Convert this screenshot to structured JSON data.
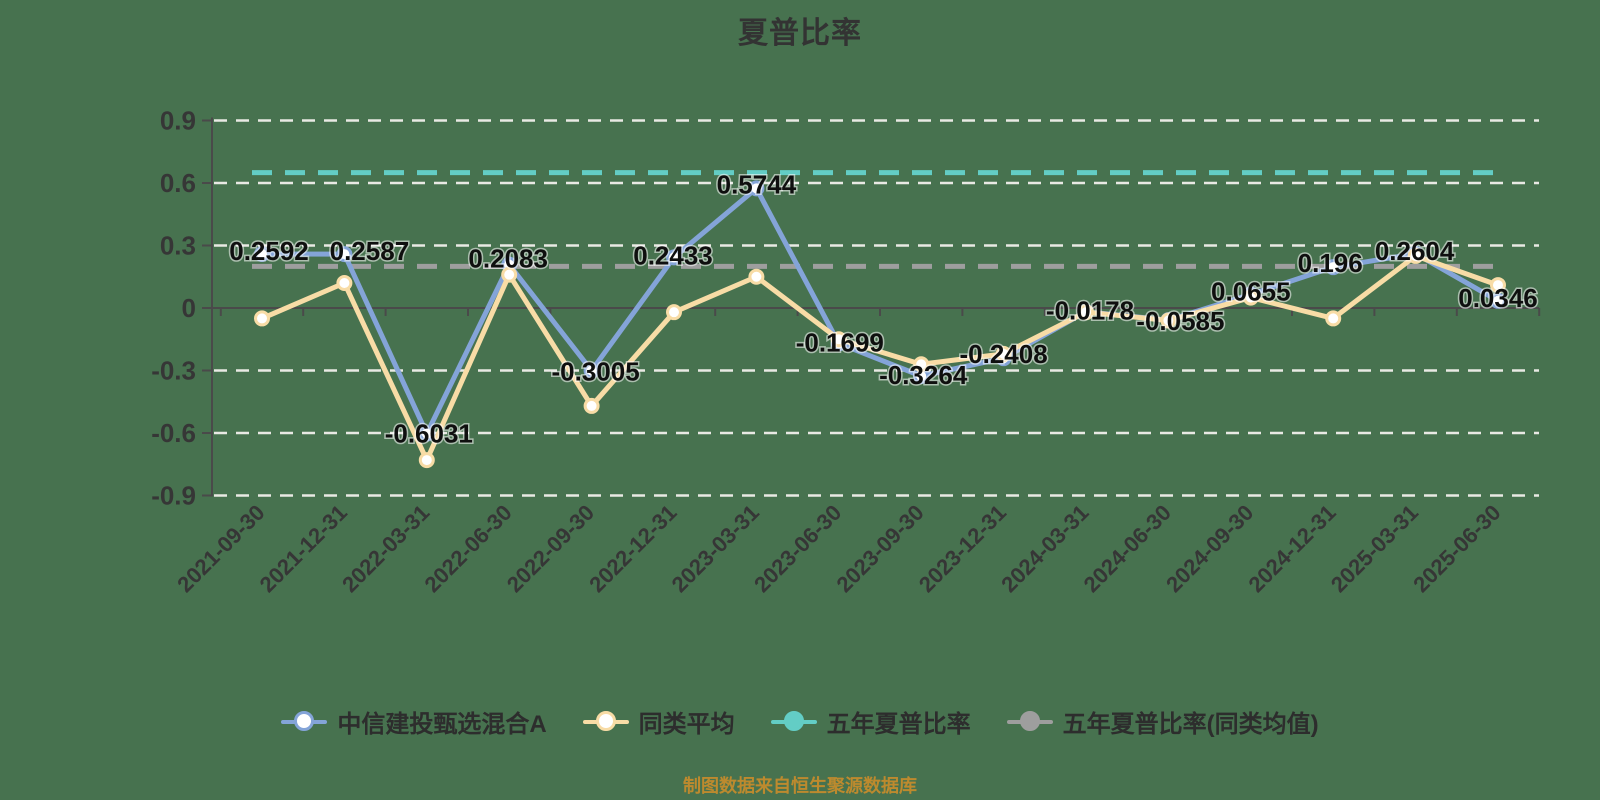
{
  "title": "夏普比率",
  "caption": {
    "text": "制图数据来自恒生聚源数据库"
  },
  "colors": {
    "background": "#47724f",
    "grid_line": "#e9e9e4",
    "axis_line": "#4a4a4a",
    "tick_text": "#363636",
    "data_label_text": "#0f0f0f",
    "title_text": "#333333",
    "legend_text": "#2d2d2d",
    "caption_text": "#bd8a2e",
    "marker_fill": "#ffffff"
  },
  "chart_data": {
    "type": "line",
    "title": "夏普比率",
    "categories": [
      "2021-09-30",
      "2021-12-31",
      "2022-03-31",
      "2022-06-30",
      "2022-09-30",
      "2022-12-31",
      "2023-03-31",
      "2023-06-30",
      "2023-09-30",
      "2023-12-31",
      "2024-03-31",
      "2024-06-30",
      "2024-09-30",
      "2024-12-31",
      "2025-03-31",
      "2025-06-30"
    ],
    "series": [
      {
        "name": "中信建投甄选混合A",
        "type": "line",
        "color": "#84a4d8",
        "marker": "white-circle",
        "values": [
          0.2592,
          0.2587,
          -0.6031,
          0.2083,
          -0.3005,
          0.2433,
          0.5744,
          -0.1699,
          -0.3264,
          -0.2408,
          -0.0178,
          -0.0585,
          0.0655,
          0.196,
          0.2604,
          0.0346
        ],
        "point_labels": [
          "0.2592",
          "0.2587",
          "-0.6031",
          "0.2083",
          "-0.3005",
          "0.2433",
          "0.5744",
          "-0.1699",
          "-0.3264",
          "-0.2408",
          "-0.0178",
          "-0.0585",
          "0.0655",
          "0.196",
          "0.2604",
          "0.0346"
        ]
      },
      {
        "name": "同类平均",
        "type": "line",
        "color": "#f8dca6",
        "marker": "white-circle",
        "values": [
          -0.05,
          0.12,
          -0.73,
          0.16,
          -0.47,
          -0.02,
          0.15,
          -0.15,
          -0.27,
          -0.22,
          -0.02,
          -0.06,
          0.05,
          -0.05,
          0.25,
          0.11
        ],
        "point_labels": null
      },
      {
        "name": "五年夏普比率",
        "type": "hline",
        "color": "#63cdc5",
        "value": 0.65
      },
      {
        "name": "五年夏普比率(同类均值)",
        "type": "hline",
        "color": "#9e9e9e",
        "value": 0.2
      }
    ],
    "ylim": [
      -0.9,
      0.9
    ],
    "yticks": [
      0.9,
      0.6,
      0.3,
      0,
      -0.3,
      -0.6,
      -0.9
    ],
    "ytick_labels": [
      "0.9",
      "0.6",
      "0.3",
      "0",
      "-0.3",
      "-0.6",
      "-0.9"
    ],
    "grid": "horizontal-dashed",
    "x_axis_position": "zero",
    "x_label_rotation": 45,
    "legend_position": "bottom",
    "label_offsets": {
      "dx": [
        7,
        25,
        2,
        -1,
        4,
        -1,
        0,
        1,
        2,
        0,
        4,
        12,
        0,
        -3,
        -1,
        0
      ],
      "dy": [
        -3,
        -3,
        0,
        -6,
        1,
        -2,
        -4,
        -1,
        -1,
        -4,
        -1,
        1,
        -3,
        -4,
        -3,
        -3
      ]
    }
  }
}
